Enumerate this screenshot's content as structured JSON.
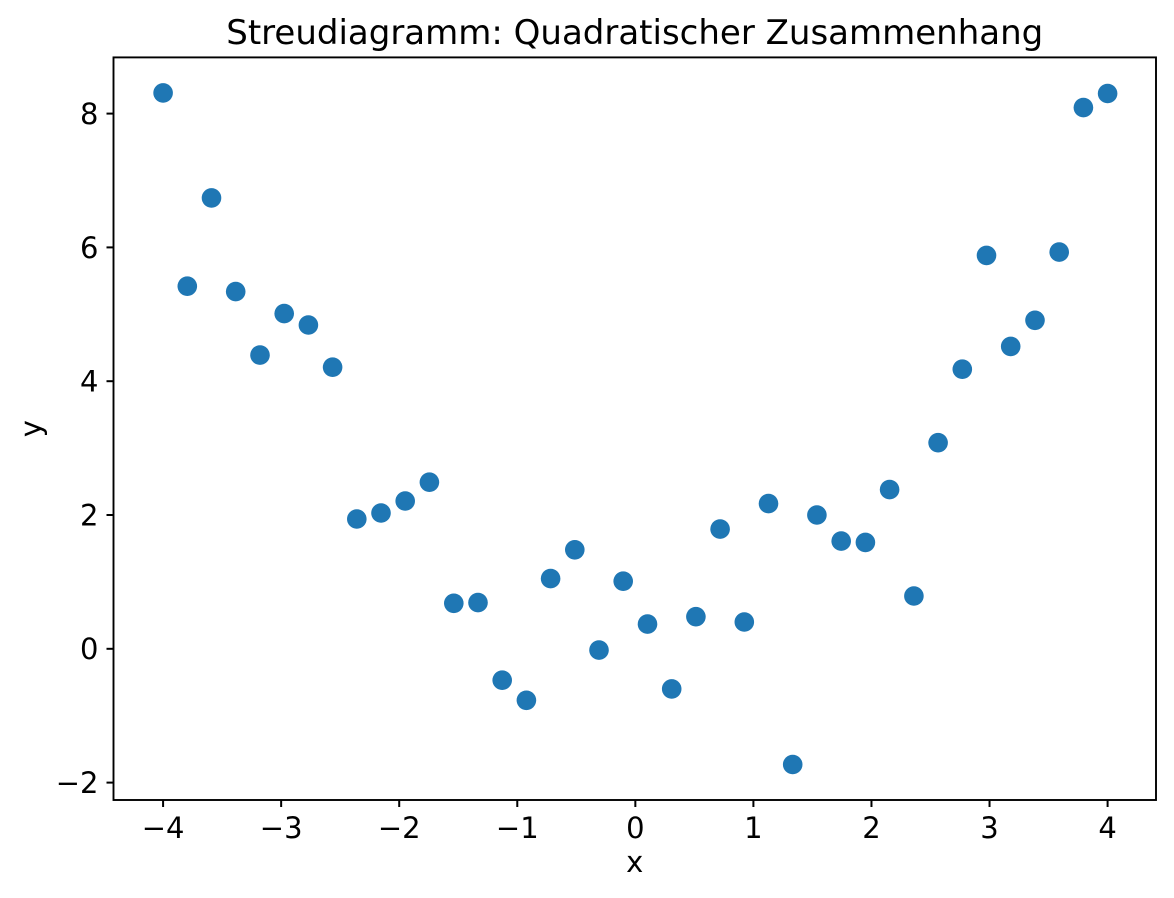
{
  "chart_data": {
    "type": "scatter",
    "title": "Streudiagramm: Quadratischer Zusammenhang",
    "xlabel": "x",
    "ylabel": "y",
    "xlim": [
      -4.42,
      4.41
    ],
    "ylim": [
      -2.26,
      8.84
    ],
    "x_ticks": [
      -4,
      -3,
      -2,
      -1,
      0,
      1,
      2,
      3,
      4
    ],
    "y_ticks": [
      -2,
      0,
      2,
      4,
      6,
      8
    ],
    "grid": false,
    "legend": null,
    "marker_color": "#1f77b4",
    "marker_radius_px": 9.8,
    "axis_color": "#000000",
    "background_color": "#ffffff",
    "points": [
      [
        -4.0,
        8.31
      ],
      [
        -3.795,
        5.42
      ],
      [
        -3.59,
        6.74
      ],
      [
        -3.385,
        5.34
      ],
      [
        -3.179,
        4.39
      ],
      [
        -2.974,
        5.01
      ],
      [
        -2.769,
        4.84
      ],
      [
        -2.564,
        4.21
      ],
      [
        -2.359,
        1.94
      ],
      [
        -2.154,
        2.03
      ],
      [
        -1.949,
        2.21
      ],
      [
        -1.744,
        2.49
      ],
      [
        -1.538,
        0.68
      ],
      [
        -1.333,
        0.69
      ],
      [
        -1.128,
        -0.47
      ],
      [
        -0.923,
        -0.77
      ],
      [
        -0.718,
        1.05
      ],
      [
        -0.513,
        1.48
      ],
      [
        -0.308,
        -0.02
      ],
      [
        -0.103,
        1.01
      ],
      [
        0.103,
        0.37
      ],
      [
        0.308,
        -0.6
      ],
      [
        0.513,
        0.48
      ],
      [
        0.718,
        1.79
      ],
      [
        0.923,
        0.4
      ],
      [
        1.128,
        2.17
      ],
      [
        1.333,
        -1.73
      ],
      [
        1.538,
        2.0
      ],
      [
        1.744,
        1.61
      ],
      [
        1.949,
        1.59
      ],
      [
        2.154,
        2.38
      ],
      [
        2.359,
        0.79
      ],
      [
        2.564,
        3.08
      ],
      [
        2.769,
        4.18
      ],
      [
        2.974,
        5.88
      ],
      [
        3.179,
        4.52
      ],
      [
        3.385,
        4.91
      ],
      [
        3.59,
        5.93
      ],
      [
        3.795,
        8.09
      ],
      [
        4.0,
        8.3
      ]
    ]
  }
}
